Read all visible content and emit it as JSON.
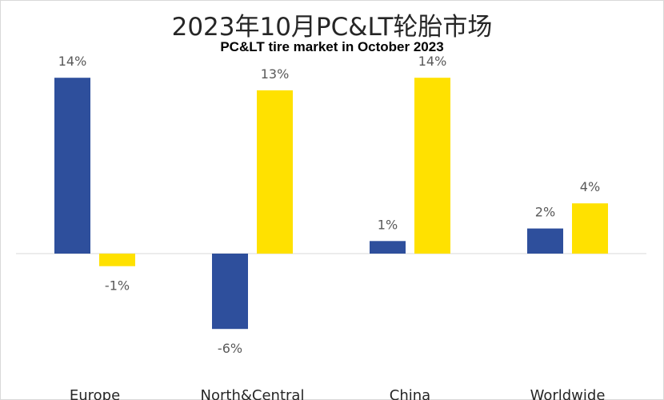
{
  "title": "2023年10月PC&LT轮胎市场",
  "subtitle": "PC&LT tire market in October 2023",
  "chart_data": {
    "type": "bar",
    "title": "2023年10月PC&LT轮胎市场",
    "subtitle": "PC&LT tire market in October 2023",
    "categories": [
      "Europe",
      "North&Central",
      "China",
      "Worldwide"
    ],
    "series": [
      {
        "color": "#2e4f9c",
        "values": [
          14,
          -6,
          1,
          2
        ],
        "labels": [
          "14%",
          "-6%",
          "1%",
          "2%"
        ]
      },
      {
        "color": "#ffe100",
        "values": [
          -1,
          13,
          14,
          4
        ],
        "labels": [
          "-1%",
          "13%",
          "14%",
          "4%"
        ]
      }
    ],
    "ylim": [
      -8,
      14.5
    ],
    "grid": false,
    "legend": "none"
  }
}
